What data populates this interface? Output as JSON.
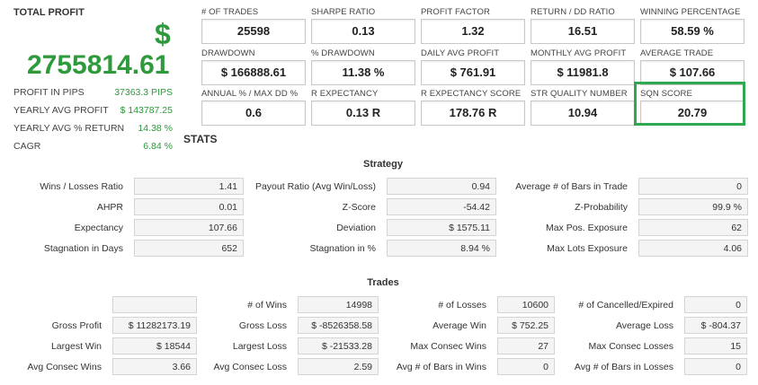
{
  "summary": {
    "total_profit_label": "TOTAL PROFIT",
    "currency_symbol": "$",
    "total_profit_value": "2755814.61",
    "rows": [
      {
        "label": "PROFIT IN PIPS",
        "value": "37363.3 PIPS"
      },
      {
        "label": "YEARLY AVG PROFIT",
        "value": "$ 143787.25"
      },
      {
        "label": "YEARLY AVG % RETURN",
        "value": "14.38 %"
      },
      {
        "label": "CAGR",
        "value": "6.84 %"
      }
    ]
  },
  "metrics": [
    {
      "label": "# OF TRADES",
      "value": "25598"
    },
    {
      "label": "SHARPE RATIO",
      "value": "0.13"
    },
    {
      "label": "PROFIT FACTOR",
      "value": "1.32"
    },
    {
      "label": "RETURN / DD RATIO",
      "value": "16.51"
    },
    {
      "label": "WINNING PERCENTAGE",
      "value": "58.59 %"
    },
    {
      "label": "DRAWDOWN",
      "value": "$ 166888.61"
    },
    {
      "label": "% DRAWDOWN",
      "value": "11.38 %"
    },
    {
      "label": "DAILY AVG PROFIT",
      "value": "$ 761.91"
    },
    {
      "label": "MONTHLY AVG PROFIT",
      "value": "$ 11981.8"
    },
    {
      "label": "AVERAGE TRADE",
      "value": "$ 107.66"
    },
    {
      "label": "ANNUAL % / MAX DD %",
      "value": "0.6"
    },
    {
      "label": "R EXPECTANCY",
      "value": "0.13 R"
    },
    {
      "label": "R EXPECTANCY SCORE",
      "value": "178.76 R"
    },
    {
      "label": "STR QUALITY NUMBER",
      "value": "10.94"
    },
    {
      "label": "SQN SCORE",
      "value": "20.79"
    }
  ],
  "stats_label": "STATS",
  "strategy": {
    "title": "Strategy",
    "rows": [
      [
        {
          "label": "Wins / Losses Ratio",
          "value": "1.41"
        },
        {
          "label": "Payout Ratio (Avg Win/Loss)",
          "value": "0.94"
        },
        {
          "label": "Average # of Bars in Trade",
          "value": "0"
        }
      ],
      [
        {
          "label": "AHPR",
          "value": "0.01"
        },
        {
          "label": "Z-Score",
          "value": "-54.42"
        },
        {
          "label": "Z-Probability",
          "value": "99.9 %"
        }
      ],
      [
        {
          "label": "Expectancy",
          "value": "107.66"
        },
        {
          "label": "Deviation",
          "value": "$ 1575.11"
        },
        {
          "label": "Max Pos. Exposure",
          "value": "62"
        }
      ],
      [
        {
          "label": "Stagnation in Days",
          "value": "652"
        },
        {
          "label": "Stagnation in %",
          "value": "8.94 %"
        },
        {
          "label": "Max Lots Exposure",
          "value": "4.06"
        }
      ]
    ]
  },
  "trades": {
    "title": "Trades",
    "rows": [
      [
        {
          "label": "",
          "value": ""
        },
        {
          "label": "# of Wins",
          "value": "14998"
        },
        {
          "label": "# of Losses",
          "value": "10600"
        },
        {
          "label": "# of Cancelled/Expired",
          "value": "0"
        }
      ],
      [
        {
          "label": "Gross Profit",
          "value": "$ 11282173.19"
        },
        {
          "label": "Gross Loss",
          "value": "$ -8526358.58"
        },
        {
          "label": "Average Win",
          "value": "$ 752.25"
        },
        {
          "label": "Average Loss",
          "value": "$ -804.37"
        }
      ],
      [
        {
          "label": "Largest Win",
          "value": "$ 18544"
        },
        {
          "label": "Largest Loss",
          "value": "$ -21533.28"
        },
        {
          "label": "Max Consec Wins",
          "value": "27"
        },
        {
          "label": "Max Consec Losses",
          "value": "15"
        }
      ],
      [
        {
          "label": "Avg Consec Wins",
          "value": "3.66"
        },
        {
          "label": "Avg Consec Loss",
          "value": "2.59"
        },
        {
          "label": "Avg # of Bars in Wins",
          "value": "0"
        },
        {
          "label": "Avg # of Bars in Losses",
          "value": "0"
        }
      ]
    ]
  }
}
